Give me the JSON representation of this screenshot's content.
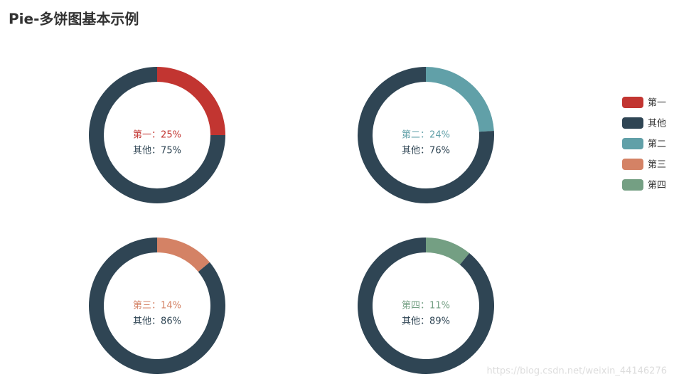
{
  "title": "Pie-多饼图基本示例",
  "watermark": "https://blog.csdn.net/weixin_44146276",
  "legend": {
    "position": "right",
    "items": [
      {
        "name": "第一",
        "color": "#c23531"
      },
      {
        "name": "其他",
        "color": "#2f4554"
      },
      {
        "name": "第二",
        "color": "#61a0a8"
      },
      {
        "name": "第三",
        "color": "#d48265"
      },
      {
        "name": "第四",
        "color": "#749f83"
      }
    ]
  },
  "chart_data": [
    {
      "type": "pie",
      "categories": [
        "第一",
        "其他"
      ],
      "values": [
        25,
        75
      ],
      "value_labels": [
        "第一：25%",
        "其他：75%"
      ],
      "colors": [
        "#c23531",
        "#2f4554"
      ]
    },
    {
      "type": "pie",
      "categories": [
        "第二",
        "其他"
      ],
      "values": [
        24,
        76
      ],
      "value_labels": [
        "第二：24%",
        "其他：76%"
      ],
      "colors": [
        "#61a0a8",
        "#2f4554"
      ]
    },
    {
      "type": "pie",
      "categories": [
        "第三",
        "其他"
      ],
      "values": [
        14,
        86
      ],
      "value_labels": [
        "第三：14%",
        "其他：86%"
      ],
      "colors": [
        "#d48265",
        "#2f4554"
      ]
    },
    {
      "type": "pie",
      "categories": [
        "第四",
        "其他"
      ],
      "values": [
        11,
        89
      ],
      "value_labels": [
        "第四：11%",
        "其他：89%"
      ],
      "colors": [
        "#749f83",
        "#2f4554"
      ]
    }
  ]
}
